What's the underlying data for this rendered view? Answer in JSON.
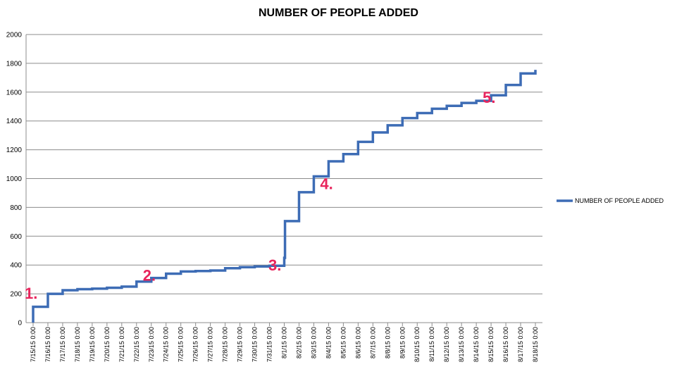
{
  "chart_data": {
    "type": "line",
    "title": "NUMBER OF PEOPLE ADDED",
    "xlabel": "",
    "ylabel": "",
    "ylim": [
      0,
      2000
    ],
    "y_ticks": [
      0,
      200,
      400,
      600,
      800,
      1000,
      1200,
      1400,
      1600,
      1800,
      2000
    ],
    "grid": true,
    "legend_position": "right",
    "series_color": "#3d6cb5",
    "annotation_color": "#e8245c",
    "categories": [
      "7/15/15 0:00",
      "7/16/15 0:00",
      "7/17/15 0:00",
      "7/18/15 0:00",
      "7/19/15 0:00",
      "7/20/15 0:00",
      "7/21/15 0:00",
      "7/22/15 0:00",
      "7/23/15 0:00",
      "7/24/15 0:00",
      "7/25/15 0:00",
      "7/26/15 0:00",
      "7/27/15 0:00",
      "7/28/15 0:00",
      "7/29/15 0:00",
      "7/30/15 0:00",
      "7/31/15 0:00",
      "8/1/15 0:00",
      "8/2/15 0:00",
      "8/3/15 0:00",
      "8/4/15 0:00",
      "8/5/15 0:00",
      "8/6/15 0:00",
      "8/7/15 0:00",
      "8/8/15 0:00",
      "8/9/15 0:00",
      "8/10/15 0:00",
      "8/11/15 0:00",
      "8/12/15 0:00",
      "8/13/15 0:00",
      "8/14/15 0:00",
      "8/15/15 0:00",
      "8/16/15 0:00",
      "8/17/15 0:00",
      "8/18/15 0:00"
    ],
    "series": [
      {
        "name": "NUMBER OF PEOPLE ADDED",
        "points": [
          [
            0,
            0
          ],
          [
            0,
            110
          ],
          [
            1,
            110
          ],
          [
            1,
            200
          ],
          [
            2,
            200
          ],
          [
            2,
            225
          ],
          [
            3,
            225
          ],
          [
            3,
            232
          ],
          [
            4,
            232
          ],
          [
            4,
            236
          ],
          [
            5,
            236
          ],
          [
            5,
            242
          ],
          [
            6,
            242
          ],
          [
            6,
            250
          ],
          [
            7,
            250
          ],
          [
            7,
            285
          ],
          [
            8,
            285
          ],
          [
            8,
            310
          ],
          [
            9,
            310
          ],
          [
            9,
            340
          ],
          [
            10,
            340
          ],
          [
            10,
            355
          ],
          [
            11,
            355
          ],
          [
            11,
            358
          ],
          [
            12,
            358
          ],
          [
            12,
            362
          ],
          [
            13,
            362
          ],
          [
            13,
            378
          ],
          [
            14,
            378
          ],
          [
            14,
            385
          ],
          [
            15,
            385
          ],
          [
            15,
            390
          ],
          [
            16,
            390
          ],
          [
            16,
            395
          ],
          [
            17,
            395
          ],
          [
            17,
            450
          ],
          [
            17.05,
            450
          ],
          [
            17.05,
            705
          ],
          [
            18,
            705
          ],
          [
            18,
            905
          ],
          [
            19,
            905
          ],
          [
            19,
            1015
          ],
          [
            20,
            1015
          ],
          [
            20,
            1120
          ],
          [
            21,
            1120
          ],
          [
            21,
            1170
          ],
          [
            22,
            1170
          ],
          [
            22,
            1255
          ],
          [
            23,
            1255
          ],
          [
            23,
            1320
          ],
          [
            24,
            1320
          ],
          [
            24,
            1370
          ],
          [
            25,
            1370
          ],
          [
            25,
            1420
          ],
          [
            26,
            1420
          ],
          [
            26,
            1455
          ],
          [
            27,
            1455
          ],
          [
            27,
            1485
          ],
          [
            28,
            1485
          ],
          [
            28,
            1505
          ],
          [
            29,
            1505
          ],
          [
            29,
            1525
          ],
          [
            30,
            1525
          ],
          [
            30,
            1540
          ],
          [
            31,
            1540
          ],
          [
            31,
            1578
          ],
          [
            32,
            1578
          ],
          [
            32,
            1650
          ],
          [
            33,
            1650
          ],
          [
            33,
            1730
          ],
          [
            34,
            1730
          ],
          [
            34,
            1755
          ]
        ]
      }
    ],
    "annotations": [
      {
        "label": "1.",
        "x": 0,
        "y": 205
      },
      {
        "label": "2.",
        "x": 8,
        "y": 330
      },
      {
        "label": "3.",
        "x": 16.5,
        "y": 400
      },
      {
        "label": "4.",
        "x": 20,
        "y": 965
      },
      {
        "label": "5.",
        "x": 31,
        "y": 1565
      }
    ]
  }
}
